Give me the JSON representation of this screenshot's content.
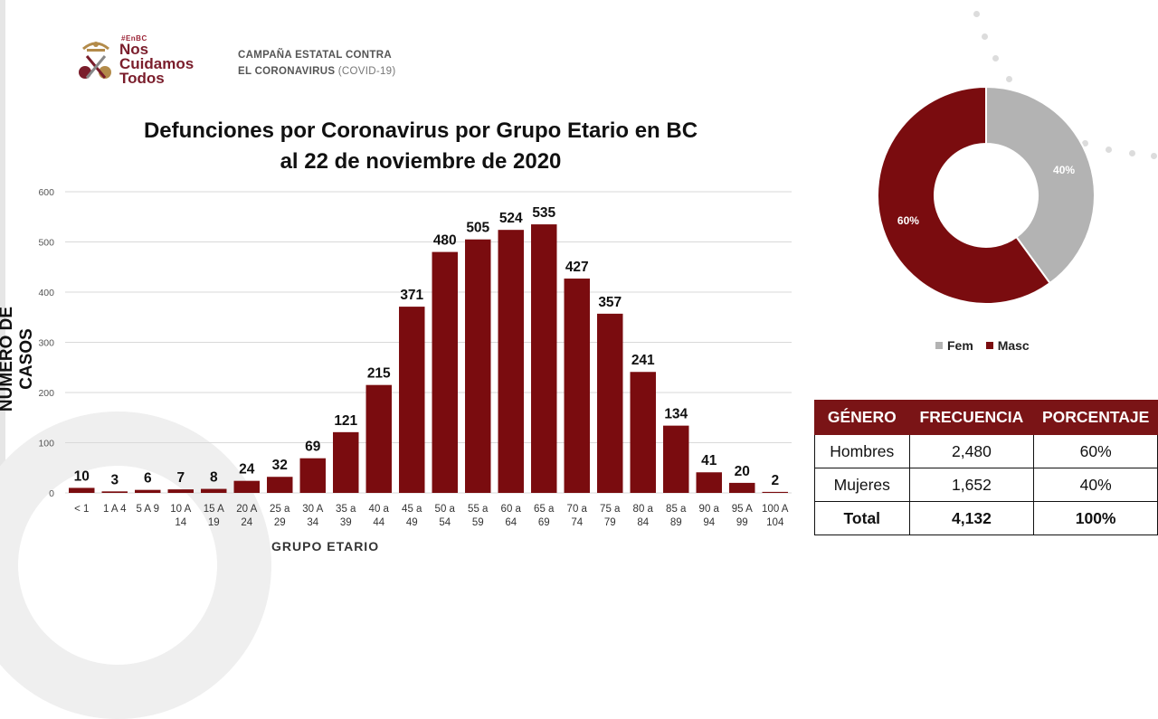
{
  "logo": {
    "hashtag": "#EnBC",
    "lines": [
      "Nos",
      "Cuidamos",
      "Todos"
    ]
  },
  "campaign": {
    "line1": "CAMPAÑA ESTATAL CONTRA",
    "line2_bold": "EL CORONAVIRUS",
    "line2_light": "(COVID-19)"
  },
  "colors": {
    "bar": "#7a0c0f",
    "fem": "#b3b3b3",
    "masc": "#7a0c0f",
    "table_header": "#7a1416"
  },
  "chart_data": [
    {
      "type": "bar",
      "title": "Defunciones por Coronavirus por Grupo Etario en BC al 22 de noviembre de 2020",
      "title_lines": [
        "Defunciones por Coronavirus por Grupo Etario en BC",
        "al 22 de noviembre de 2020"
      ],
      "ylabel": "NÚMERO DE CASOS",
      "xlabel": "GRUPO ETARIO",
      "ylim": [
        0,
        600
      ],
      "yticks": [
        0,
        100,
        200,
        300,
        400,
        500,
        600
      ],
      "grid": true,
      "categories": [
        [
          "< 1"
        ],
        [
          "1 A 4"
        ],
        [
          "5 A 9"
        ],
        [
          "10 A",
          "14"
        ],
        [
          "15 A",
          "19"
        ],
        [
          "20 A",
          "24"
        ],
        [
          "25 a",
          "29"
        ],
        [
          "30 A",
          "34"
        ],
        [
          "35 a",
          "39"
        ],
        [
          "40 a",
          "44"
        ],
        [
          "45 a",
          "49"
        ],
        [
          "50 a",
          "54"
        ],
        [
          "55 a",
          "59"
        ],
        [
          "60 a",
          "64"
        ],
        [
          "65 a",
          "69"
        ],
        [
          "70 a",
          "74"
        ],
        [
          "75 a",
          "79"
        ],
        [
          "80 a",
          "84"
        ],
        [
          "85 a",
          "89"
        ],
        [
          "90 a",
          "94"
        ],
        [
          "95 A",
          "99"
        ],
        [
          "100 A",
          "104"
        ]
      ],
      "values": [
        10,
        3,
        6,
        7,
        8,
        24,
        32,
        69,
        121,
        215,
        371,
        480,
        505,
        524,
        535,
        427,
        357,
        241,
        134,
        41,
        20,
        2
      ]
    },
    {
      "type": "pie",
      "hole": true,
      "slices": [
        {
          "label": "Fem",
          "value": 40,
          "display": "40%"
        },
        {
          "label": "Masc",
          "value": 60,
          "display": "60%"
        }
      ],
      "legend": [
        "Fem",
        "Masc"
      ],
      "legend_position": "bottom"
    },
    {
      "type": "table",
      "headers": [
        "GÉNERO",
        "FRECUENCIA",
        "PORCENTAJE"
      ],
      "rows": [
        [
          "Hombres",
          "2,480",
          "60%"
        ],
        [
          "Mujeres",
          "1,652",
          "40%"
        ],
        [
          "Total",
          "4,132",
          "100%"
        ]
      ]
    }
  ]
}
